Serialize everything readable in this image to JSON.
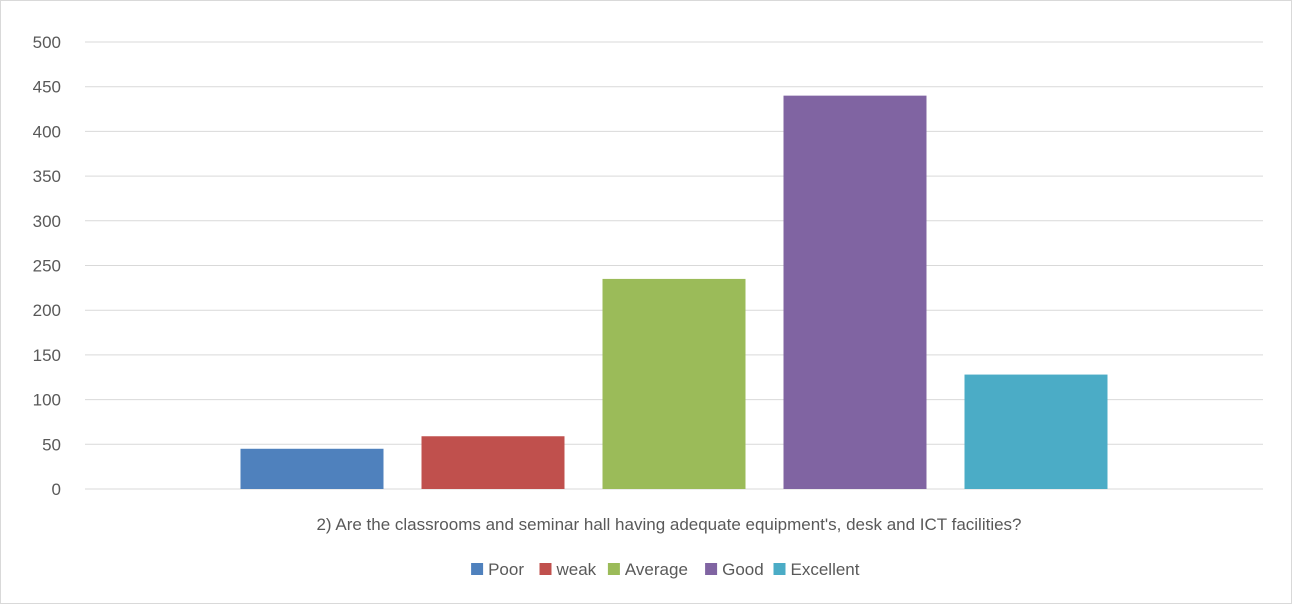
{
  "chart_data": {
    "type": "bar",
    "category_label": "2) Are the classrooms and seminar hall having adequate equipment's, desk and ICT facilities?",
    "series": [
      {
        "name": "Poor",
        "value": 45,
        "color": "#4f81bd"
      },
      {
        "name": "weak",
        "value": 59,
        "color": "#c0504d"
      },
      {
        "name": "Average",
        "value": 235,
        "color": "#9bbb59"
      },
      {
        "name": "Good",
        "value": 440,
        "color": "#8064a2"
      },
      {
        "name": "Excellent",
        "value": 128,
        "color": "#4bacc6"
      }
    ],
    "y_ticks": [
      "0",
      "50",
      "100",
      "150",
      "200",
      "250",
      "300",
      "350",
      "400",
      "450",
      "500"
    ],
    "ylim": [
      0,
      500
    ],
    "grid": true,
    "legend_position": "bottom"
  }
}
